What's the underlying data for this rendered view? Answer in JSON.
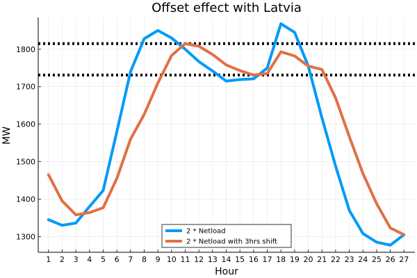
{
  "chart_data": {
    "type": "line",
    "title": "Offset effect with Latvia",
    "xlabel": "Hour",
    "ylabel": "MW",
    "xlim": [
      0.25,
      27.8
    ],
    "ylim": [
      1258,
      1885
    ],
    "x_ticks": [
      1,
      2,
      3,
      4,
      5,
      6,
      7,
      8,
      9,
      10,
      11,
      12,
      13,
      14,
      15,
      16,
      17,
      18,
      19,
      20,
      21,
      22,
      23,
      24,
      25,
      26,
      27
    ],
    "y_ticks": [
      1300,
      1400,
      1500,
      1600,
      1700,
      1800
    ],
    "grid": true,
    "legend_position": "bottom-center",
    "x": [
      1,
      2,
      3,
      4,
      5,
      6,
      7,
      8,
      9,
      10,
      11,
      12,
      13,
      14,
      15,
      16,
      17,
      18,
      19,
      20,
      21,
      22,
      23,
      24,
      25,
      26,
      27
    ],
    "series": [
      {
        "name": "2 * Netload",
        "color": "#009af9",
        "values": [
          1345,
          1330,
          1336,
          1380,
          1423,
          1580,
          1740,
          1828,
          1850,
          1830,
          1800,
          1767,
          1742,
          1715,
          1719,
          1721,
          1750,
          1868,
          1845,
          1755,
          1617,
          1488,
          1370,
          1308,
          1285,
          1277,
          1305
        ]
      },
      {
        "name": "2 * Netload with 3hrs shift",
        "color": "#e26f46",
        "values": [
          1465,
          1395,
          1358,
          1364,
          1377,
          1455,
          1560,
          1626,
          1710,
          1783,
          1815,
          1808,
          1786,
          1758,
          1743,
          1731,
          1735,
          1793,
          1782,
          1755,
          1746,
          1670,
          1567,
          1468,
          1388,
          1323,
          1305
        ]
      }
    ],
    "hlines": [
      1815,
      1731
    ],
    "hline_color": "#000000"
  }
}
